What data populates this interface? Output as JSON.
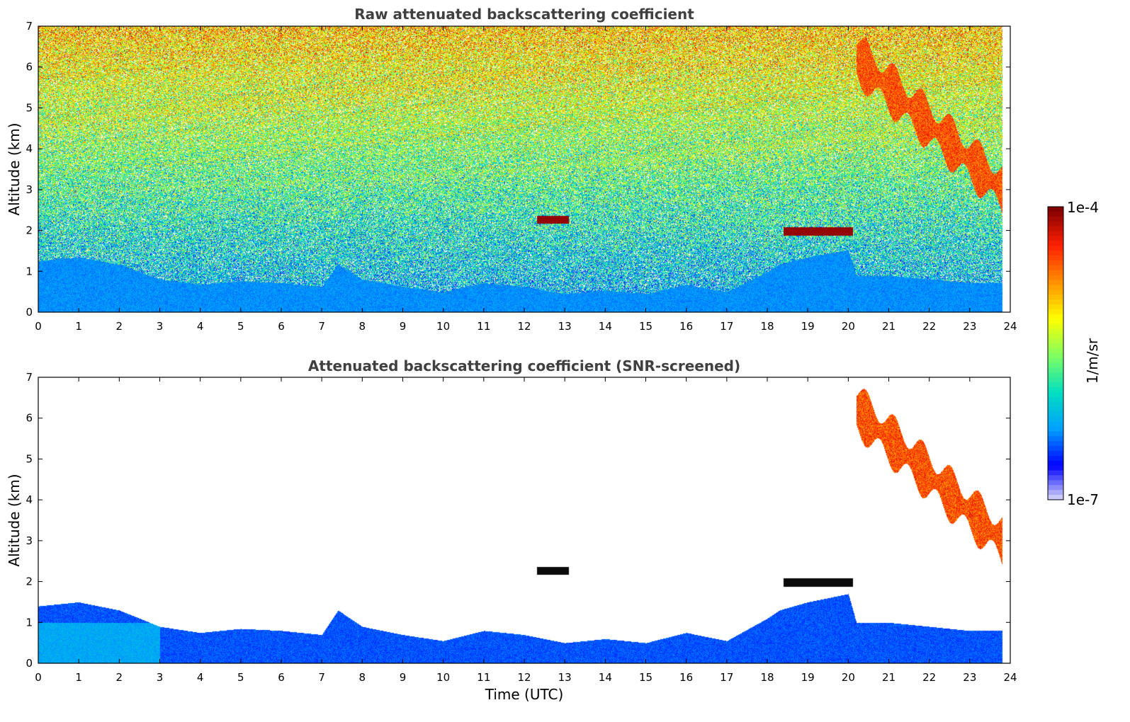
{
  "colorbar": {
    "max_label": "1e-4",
    "min_label": "1e-7",
    "unit_label": "1/m/sr",
    "colormap": [
      "#e8e8f8",
      "#0000ff",
      "#00a0ff",
      "#00e0c0",
      "#80ff60",
      "#ffff00",
      "#ff9000",
      "#ff2000",
      "#800000"
    ]
  },
  "chart_data": [
    {
      "type": "heatmap",
      "title": "Raw attenuated backscattering coefficient",
      "xlabel": "",
      "ylabel": "Altitude (km)",
      "xlim": [
        0,
        24
      ],
      "ylim": [
        0,
        7
      ],
      "x_ticks": [
        "0",
        "1",
        "2",
        "3",
        "4",
        "5",
        "6",
        "7",
        "8",
        "9",
        "10",
        "11",
        "12",
        "13",
        "14",
        "15",
        "16",
        "17",
        "18",
        "19",
        "20",
        "21",
        "22",
        "23",
        "24"
      ],
      "y_ticks": [
        "0",
        "1",
        "2",
        "3",
        "4",
        "5",
        "6",
        "7"
      ],
      "grid": false,
      "data_extent_x": [
        0,
        23.8
      ],
      "features": [
        {
          "feature": "boundary layer",
          "x": [
            0,
            23.8
          ],
          "top_km": [
            1.4,
            0.6,
            0.5,
            0.8,
            0.6
          ]
        },
        {
          "feature": "cloud layer",
          "x": [
            12.3,
            13.1
          ],
          "y": [
            2.2,
            2.35
          ]
        },
        {
          "feature": "cloud layer",
          "x": [
            18.4,
            20.1
          ],
          "y": [
            1.9,
            2.1
          ]
        },
        {
          "feature": "cirrus band",
          "x": [
            20.2,
            23.8
          ],
          "y": [
            6.2,
            3.0
          ]
        }
      ]
    },
    {
      "type": "heatmap",
      "title": "Attenuated backscattering coefficient (SNR-screened)",
      "xlabel": "Time (UTC)",
      "ylabel": "Altitude (km)",
      "xlim": [
        0,
        24
      ],
      "ylim": [
        0,
        7
      ],
      "x_ticks": [
        "0",
        "1",
        "2",
        "3",
        "4",
        "5",
        "6",
        "7",
        "8",
        "9",
        "10",
        "11",
        "12",
        "13",
        "14",
        "15",
        "16",
        "17",
        "18",
        "19",
        "20",
        "21",
        "22",
        "23",
        "24"
      ],
      "y_ticks": [
        "0",
        "1",
        "2",
        "3",
        "4",
        "5",
        "6",
        "7"
      ],
      "grid": false,
      "data_extent_x": [
        0,
        23.8
      ],
      "boundary_layer_top_km": {
        "x": [
          0,
          1,
          2,
          3,
          4,
          5,
          6,
          7,
          7.4,
          8,
          9,
          10,
          11,
          12,
          13,
          14,
          15,
          16,
          17,
          18,
          18.3,
          19,
          20,
          20.2,
          21,
          22,
          23,
          23.8
        ],
        "y": [
          1.4,
          1.5,
          1.3,
          0.9,
          0.75,
          0.85,
          0.8,
          0.7,
          1.3,
          0.9,
          0.7,
          0.55,
          0.8,
          0.7,
          0.5,
          0.6,
          0.5,
          0.75,
          0.55,
          1.1,
          1.3,
          1.5,
          1.7,
          1.0,
          1.0,
          0.9,
          0.8,
          0.8
        ]
      },
      "features": [
        {
          "feature": "cloud layer",
          "x": [
            12.3,
            13.1
          ],
          "y": [
            2.2,
            2.35
          ]
        },
        {
          "feature": "cloud layer",
          "x": [
            18.4,
            20.1
          ],
          "y": [
            1.85,
            2.05
          ]
        },
        {
          "feature": "cirrus band",
          "x": [
            20.2,
            23.8
          ],
          "y": [
            6.2,
            3.0
          ]
        }
      ]
    }
  ]
}
